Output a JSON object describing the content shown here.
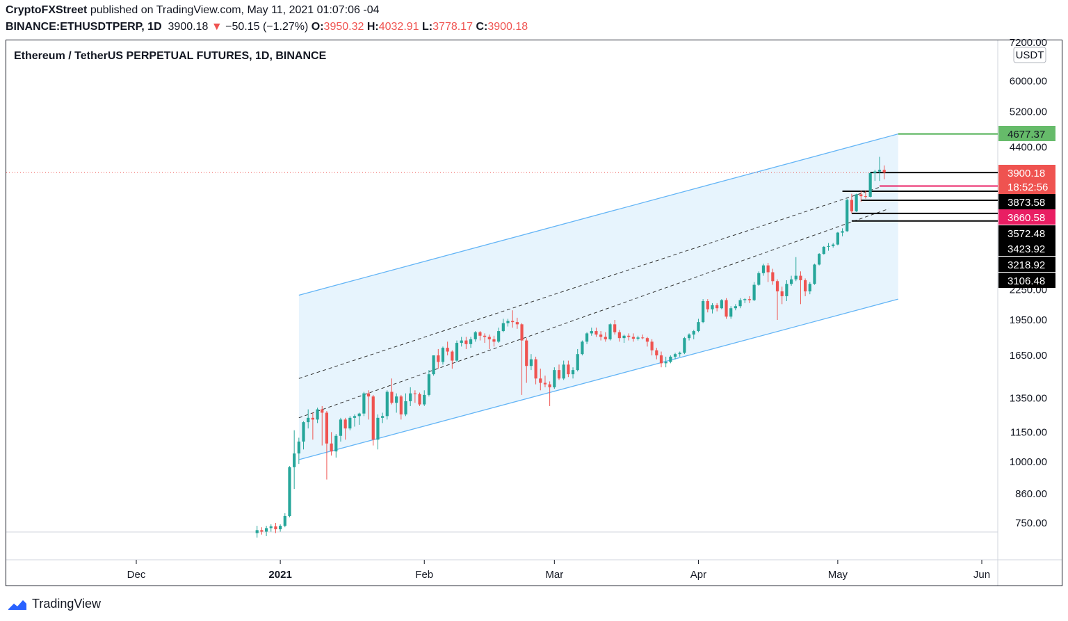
{
  "header": {
    "author": "CryptoFXStreet",
    "published_text": "published on TradingView.com, May 11, 2021 01:07:06 -04",
    "symbol": "BINANCE:ETHUSDTPERP, 1D",
    "last_price": "3900.18",
    "change_arrow": "▼",
    "change": "−50.15 (−1.27%)",
    "open_label": "O:",
    "open": "3950.32",
    "high_label": "H:",
    "high": "4032.91",
    "low_label": "L:",
    "low": "3778.17",
    "close_label": "C:",
    "close": "3900.18"
  },
  "footer": {
    "brand": "TradingView",
    "logo_icon": "tradingview-logo-icon"
  },
  "chart_data": {
    "type": "candlestick",
    "title": "Ethereum / TetherUS PERPETUAL FUTURES, 1D, BINANCE",
    "currency_label": "USDT",
    "y_scale": "log",
    "y_ticks": [
      "7200.00",
      "6000.00",
      "5200.00",
      "4400.00",
      "2250.00",
      "1950.00",
      "1650.00",
      "1350.00",
      "1150.00",
      "1000.00",
      "860.00",
      "750.00"
    ],
    "y_tick_values": [
      7200,
      6000,
      5200,
      4400,
      2250,
      1950,
      1650,
      1350,
      1150,
      1000,
      860,
      750
    ],
    "x_ticks": [
      "Dec",
      "2021",
      "Feb",
      "Mar",
      "Apr",
      "May",
      "Jun"
    ],
    "x_tick_dates": [
      "2020-12-01",
      "2021-01-01",
      "2021-02-01",
      "2021-03-01",
      "2021-04-01",
      "2021-05-01",
      "2021-06-01"
    ],
    "price_labels": [
      {
        "text": "4677.37",
        "value": 4677.37,
        "color": "#66bb6a",
        "text_color": "#131722"
      },
      {
        "text": "3900.18",
        "value": 3900.18,
        "color": "#ef5350",
        "text_color": "#ffffff"
      },
      {
        "text": "18:52:56",
        "color": "#ef5350",
        "text_color": "#ffffff"
      },
      {
        "text": "3873.58",
        "value": 3873.58,
        "color": "#000000",
        "text_color": "#ffffff"
      },
      {
        "text": "3660.58",
        "value": 3660.58,
        "color": "#e91e63",
        "text_color": "#ffffff"
      },
      {
        "text": "3572.48",
        "value": 3572.48,
        "color": "#000000",
        "text_color": "#ffffff"
      },
      {
        "text": "3423.92",
        "value": 3423.92,
        "color": "#000000",
        "text_color": "#ffffff"
      },
      {
        "text": "3218.92",
        "value": 3218.92,
        "color": "#000000",
        "text_color": "#ffffff"
      },
      {
        "text": "3106.48",
        "value": 3106.48,
        "color": "#000000",
        "text_color": "#ffffff"
      }
    ],
    "horizontal_levels": [
      {
        "price": 4677.37,
        "color": "#4caf50",
        "start": "2021-05-14"
      },
      {
        "price": 3900.18,
        "color": "#000000",
        "start": "2021-05-08"
      },
      {
        "price": 3660.58,
        "color": "#e91e63",
        "start": "2021-05-10"
      },
      {
        "price": 3573,
        "color": "#000000",
        "start": "2021-05-02"
      },
      {
        "price": 3424,
        "color": "#000000",
        "start": "2021-05-06"
      },
      {
        "price": 3219,
        "color": "#000000",
        "start": "2021-05-04"
      },
      {
        "price": 3106,
        "color": "#000000",
        "start": "2021-05-04"
      }
    ],
    "channel": {
      "start": "2021-01-05",
      "end": "2021-05-14",
      "upper": [
        2190,
        4677
      ],
      "lower": [
        1010,
        2150
      ],
      "dashed_upper": [
        1480,
        3640
      ],
      "dashed_middle": [
        1230,
        3290
      ],
      "fill": "#e3f2fd",
      "line_color": "#64b5f6"
    },
    "up_color": "#26a69a",
    "down_color": "#ef5350",
    "candles": [
      [
        "2020-12-27",
        715,
        740,
        700,
        725
      ],
      [
        "2020-12-28",
        725,
        735,
        710,
        720
      ],
      [
        "2020-12-29",
        720,
        740,
        705,
        732
      ],
      [
        "2020-12-30",
        732,
        745,
        720,
        738
      ],
      [
        "2020-12-31",
        738,
        750,
        715,
        728
      ],
      [
        "2021-01-01",
        728,
        745,
        720,
        740
      ],
      [
        "2021-01-02",
        740,
        785,
        735,
        775
      ],
      [
        "2021-01-03",
        775,
        980,
        770,
        975
      ],
      [
        "2021-01-04",
        975,
        1160,
        880,
        1040
      ],
      [
        "2021-01-05",
        1040,
        1120,
        990,
        1100
      ],
      [
        "2021-01-06",
        1100,
        1210,
        1060,
        1205
      ],
      [
        "2021-01-07",
        1205,
        1280,
        1170,
        1230
      ],
      [
        "2021-01-08",
        1230,
        1260,
        1110,
        1220
      ],
      [
        "2021-01-09",
        1220,
        1290,
        1200,
        1280
      ],
      [
        "2021-01-10",
        1280,
        1300,
        1080,
        1260
      ],
      [
        "2021-01-11",
        1260,
        1270,
        920,
        1090
      ],
      [
        "2021-01-12",
        1090,
        1150,
        1030,
        1050
      ],
      [
        "2021-01-13",
        1050,
        1140,
        1020,
        1130
      ],
      [
        "2021-01-14",
        1130,
        1230,
        1100,
        1220
      ],
      [
        "2021-01-15",
        1220,
        1230,
        1110,
        1170
      ],
      [
        "2021-01-16",
        1170,
        1240,
        1160,
        1230
      ],
      [
        "2021-01-17",
        1230,
        1250,
        1180,
        1240
      ],
      [
        "2021-01-18",
        1240,
        1260,
        1190,
        1255
      ],
      [
        "2021-01-19",
        1255,
        1390,
        1240,
        1380
      ],
      [
        "2021-01-20",
        1380,
        1400,
        1220,
        1360
      ],
      [
        "2021-01-21",
        1360,
        1370,
        1080,
        1110
      ],
      [
        "2021-01-22",
        1110,
        1250,
        1060,
        1230
      ],
      [
        "2021-01-23",
        1230,
        1260,
        1200,
        1240
      ],
      [
        "2021-01-24",
        1240,
        1400,
        1220,
        1390
      ],
      [
        "2021-01-25",
        1390,
        1480,
        1310,
        1320
      ],
      [
        "2021-01-26",
        1320,
        1380,
        1260,
        1360
      ],
      [
        "2021-01-27",
        1360,
        1370,
        1220,
        1250
      ],
      [
        "2021-01-28",
        1250,
        1380,
        1240,
        1330
      ],
      [
        "2021-01-29",
        1330,
        1420,
        1300,
        1380
      ],
      [
        "2021-01-30",
        1380,
        1400,
        1320,
        1375
      ],
      [
        "2021-01-31",
        1375,
        1385,
        1300,
        1310
      ],
      [
        "2021-02-01",
        1310,
        1400,
        1300,
        1370
      ],
      [
        "2021-02-02",
        1370,
        1540,
        1360,
        1510
      ],
      [
        "2021-02-03",
        1510,
        1650,
        1500,
        1650
      ],
      [
        "2021-02-04",
        1650,
        1700,
        1550,
        1600
      ],
      [
        "2021-02-05",
        1600,
        1720,
        1580,
        1710
      ],
      [
        "2021-02-06",
        1710,
        1760,
        1650,
        1680
      ],
      [
        "2021-02-07",
        1680,
        1690,
        1550,
        1610
      ],
      [
        "2021-02-08",
        1610,
        1770,
        1600,
        1750
      ],
      [
        "2021-02-09",
        1750,
        1800,
        1720,
        1770
      ],
      [
        "2021-02-10",
        1770,
        1800,
        1700,
        1740
      ],
      [
        "2021-02-11",
        1740,
        1800,
        1710,
        1780
      ],
      [
        "2021-02-12",
        1780,
        1850,
        1760,
        1840
      ],
      [
        "2021-02-13",
        1840,
        1850,
        1770,
        1810
      ],
      [
        "2021-02-14",
        1810,
        1830,
        1750,
        1800
      ],
      [
        "2021-02-15",
        1800,
        1820,
        1700,
        1780
      ],
      [
        "2021-02-16",
        1780,
        1810,
        1720,
        1760
      ],
      [
        "2021-02-17",
        1760,
        1880,
        1750,
        1850
      ],
      [
        "2021-02-18",
        1850,
        1960,
        1840,
        1920
      ],
      [
        "2021-02-19",
        1920,
        1960,
        1890,
        1940
      ],
      [
        "2021-02-20",
        1940,
        2040,
        1880,
        1930
      ],
      [
        "2021-02-21",
        1930,
        1970,
        1870,
        1910
      ],
      [
        "2021-02-22",
        1910,
        1920,
        1370,
        1770
      ],
      [
        "2021-02-23",
        1770,
        1790,
        1450,
        1570
      ],
      [
        "2021-02-24",
        1570,
        1660,
        1540,
        1620
      ],
      [
        "2021-02-25",
        1620,
        1640,
        1440,
        1480
      ],
      [
        "2021-02-26",
        1480,
        1550,
        1400,
        1450
      ],
      [
        "2021-02-27",
        1450,
        1500,
        1420,
        1440
      ],
      [
        "2021-02-28",
        1440,
        1460,
        1300,
        1420
      ],
      [
        "2021-03-01",
        1420,
        1560,
        1410,
        1540
      ],
      [
        "2021-03-02",
        1540,
        1580,
        1470,
        1480
      ],
      [
        "2021-03-03",
        1480,
        1610,
        1470,
        1580
      ],
      [
        "2021-03-04",
        1580,
        1610,
        1490,
        1510
      ],
      [
        "2021-03-05",
        1510,
        1560,
        1480,
        1540
      ],
      [
        "2021-03-06",
        1540,
        1700,
        1530,
        1660
      ],
      [
        "2021-03-07",
        1660,
        1770,
        1650,
        1760
      ],
      [
        "2021-03-08",
        1760,
        1840,
        1740,
        1830
      ],
      [
        "2021-03-09",
        1830,
        1880,
        1810,
        1850
      ],
      [
        "2021-03-10",
        1850,
        1880,
        1800,
        1820
      ],
      [
        "2021-03-11",
        1820,
        1850,
        1770,
        1800
      ],
      [
        "2021-03-12",
        1800,
        1840,
        1760,
        1780
      ],
      [
        "2021-03-13",
        1780,
        1920,
        1770,
        1910
      ],
      [
        "2021-03-14",
        1910,
        1950,
        1820,
        1840
      ],
      [
        "2021-03-15",
        1840,
        1860,
        1760,
        1790
      ],
      [
        "2021-03-16",
        1790,
        1820,
        1750,
        1810
      ],
      [
        "2021-03-17",
        1810,
        1830,
        1770,
        1800
      ],
      [
        "2021-03-18",
        1800,
        1830,
        1760,
        1785
      ],
      [
        "2021-03-19",
        1785,
        1810,
        1770,
        1795
      ],
      [
        "2021-03-20",
        1795,
        1820,
        1780,
        1790
      ],
      [
        "2021-03-21",
        1790,
        1800,
        1720,
        1760
      ],
      [
        "2021-03-22",
        1760,
        1780,
        1650,
        1690
      ],
      [
        "2021-03-23",
        1690,
        1710,
        1620,
        1650
      ],
      [
        "2021-03-24",
        1650,
        1680,
        1560,
        1590
      ],
      [
        "2021-03-25",
        1590,
        1640,
        1560,
        1600
      ],
      [
        "2021-03-26",
        1600,
        1650,
        1590,
        1640
      ],
      [
        "2021-03-27",
        1640,
        1670,
        1620,
        1660
      ],
      [
        "2021-03-28",
        1660,
        1680,
        1640,
        1670
      ],
      [
        "2021-03-29",
        1670,
        1800,
        1660,
        1790
      ],
      [
        "2021-03-30",
        1790,
        1830,
        1770,
        1820
      ],
      [
        "2021-03-31",
        1820,
        1860,
        1780,
        1850
      ],
      [
        "2021-04-01",
        1850,
        1960,
        1840,
        1930
      ],
      [
        "2021-04-02",
        1930,
        2150,
        1920,
        2130
      ],
      [
        "2021-04-03",
        2130,
        2150,
        2020,
        2050
      ],
      [
        "2021-04-04",
        2050,
        2110,
        2010,
        2090
      ],
      [
        "2021-04-05",
        2090,
        2110,
        2030,
        2060
      ],
      [
        "2021-04-06",
        2060,
        2150,
        2050,
        2140
      ],
      [
        "2021-04-07",
        2140,
        2160,
        1960,
        1980
      ],
      [
        "2021-04-08",
        1980,
        2080,
        1960,
        2060
      ],
      [
        "2021-04-09",
        2060,
        2100,
        2040,
        2080
      ],
      [
        "2021-04-10",
        2080,
        2160,
        2060,
        2140
      ],
      [
        "2021-04-11",
        2140,
        2160,
        2110,
        2150
      ],
      [
        "2021-04-12",
        2150,
        2180,
        2110,
        2140
      ],
      [
        "2021-04-13",
        2140,
        2330,
        2130,
        2300
      ],
      [
        "2021-04-14",
        2300,
        2450,
        2290,
        2430
      ],
      [
        "2021-04-15",
        2430,
        2540,
        2400,
        2520
      ],
      [
        "2021-04-16",
        2520,
        2550,
        2330,
        2440
      ],
      [
        "2021-04-17",
        2440,
        2480,
        2300,
        2340
      ],
      [
        "2021-04-18",
        2340,
        2360,
        1950,
        2230
      ],
      [
        "2021-04-19",
        2230,
        2280,
        2100,
        2180
      ],
      [
        "2021-04-20",
        2180,
        2350,
        2130,
        2310
      ],
      [
        "2021-04-21",
        2310,
        2400,
        2290,
        2360
      ],
      [
        "2021-04-22",
        2360,
        2620,
        2340,
        2400
      ],
      [
        "2021-04-23",
        2400,
        2450,
        2100,
        2350
      ],
      [
        "2021-04-24",
        2350,
        2370,
        2180,
        2230
      ],
      [
        "2021-04-25",
        2230,
        2330,
        2200,
        2310
      ],
      [
        "2021-04-26",
        2310,
        2540,
        2300,
        2530
      ],
      [
        "2021-04-27",
        2530,
        2670,
        2520,
        2660
      ],
      [
        "2021-04-28",
        2660,
        2760,
        2650,
        2750
      ],
      [
        "2021-04-29",
        2750,
        2800,
        2700,
        2760
      ],
      [
        "2021-04-30",
        2760,
        2800,
        2740,
        2780
      ],
      [
        "2021-05-01",
        2780,
        2950,
        2770,
        2940
      ],
      [
        "2021-05-02",
        2940,
        3000,
        2890,
        2960
      ],
      [
        "2021-05-03",
        2960,
        3450,
        2950,
        3430
      ],
      [
        "2021-05-04",
        3430,
        3530,
        3220,
        3250
      ],
      [
        "2021-05-05",
        3250,
        3530,
        3240,
        3520
      ],
      [
        "2021-05-06",
        3520,
        3580,
        3400,
        3490
      ],
      [
        "2021-05-07",
        3490,
        3580,
        3450,
        3480
      ],
      [
        "2021-05-08",
        3480,
        3900,
        3470,
        3890
      ],
      [
        "2021-05-09",
        3890,
        3950,
        3750,
        3920
      ],
      [
        "2021-05-10",
        3920,
        4200,
        3750,
        3950
      ],
      [
        "2021-05-11",
        3950,
        4032.91,
        3778.17,
        3900.18
      ]
    ]
  }
}
